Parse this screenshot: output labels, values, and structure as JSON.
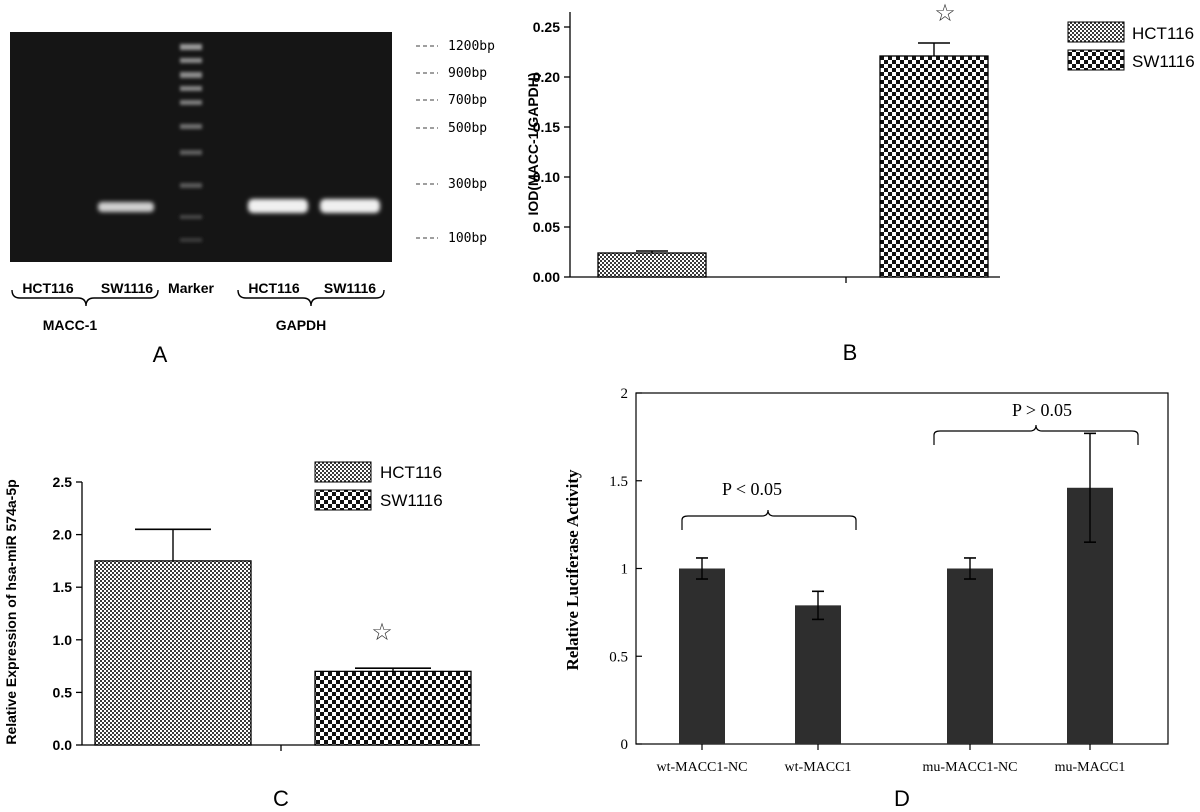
{
  "panels": {
    "A": {
      "label": "A",
      "bands": [
        "1200bp",
        "900bp",
        "700bp",
        "500bp",
        "300bp",
        "100bp"
      ],
      "lanes": [
        "HCT116",
        "SW1116",
        "Marker",
        "HCT116",
        "SW1116"
      ],
      "groups": [
        "MACC-1",
        "GAPDH"
      ]
    },
    "B": {
      "label": "B",
      "significance": "☆"
    },
    "C": {
      "label": "C",
      "significance": "☆"
    },
    "D": {
      "label": "D",
      "annotations": [
        "P < 0.05",
        "P > 0.05"
      ]
    }
  },
  "colors": {
    "bar_dark": "#2e2e2e",
    "gel_bg": "#141414",
    "gel_band": "#e8e8e8"
  },
  "chart_data": [
    {
      "panel": "B",
      "type": "bar",
      "categories": [
        "HCT116",
        "SW1116"
      ],
      "series": [
        {
          "name": "HCT116",
          "values": [
            0.024,
            null
          ],
          "errors": [
            0.002,
            null
          ]
        },
        {
          "name": "SW1116",
          "values": [
            null,
            0.221
          ],
          "errors": [
            null,
            0.013
          ]
        }
      ],
      "xlabel": "",
      "ylabel": "IOD(MACC-1/GAPDH)",
      "ylim": [
        0,
        0.25
      ],
      "yticks": [
        "0.00",
        "0.05",
        "0.10",
        "0.15",
        "0.20",
        "0.25"
      ],
      "legend": "top-right"
    },
    {
      "panel": "C",
      "type": "bar",
      "categories": [
        "HCT116",
        "SW1116"
      ],
      "series": [
        {
          "name": "HCT116",
          "values": [
            1.75,
            null
          ],
          "errors": [
            0.3,
            null
          ]
        },
        {
          "name": "SW1116",
          "values": [
            null,
            0.7
          ],
          "errors": [
            null,
            0.03
          ]
        }
      ],
      "xlabel": "",
      "ylabel": "Relative Expression of hsa-miR 574a-5p",
      "ylim": [
        0,
        2.5
      ],
      "yticks": [
        "0.0",
        "0.5",
        "1.0",
        "1.5",
        "2.0",
        "2.5"
      ],
      "legend": "top-right"
    },
    {
      "panel": "D",
      "type": "bar",
      "categories": [
        "wt-MACC1-NC",
        "wt-MACC1",
        "mu-MACC1-NC",
        "mu-MACC1"
      ],
      "values": [
        1.0,
        0.79,
        1.0,
        1.46
      ],
      "errors": [
        0.06,
        0.08,
        0.06,
        0.31
      ],
      "xlabel": "",
      "ylabel": "Relative Luciferase Activity",
      "ylim": [
        0,
        2
      ],
      "yticks": [
        "0",
        "0.5",
        "1",
        "1.5",
        "2"
      ]
    }
  ]
}
